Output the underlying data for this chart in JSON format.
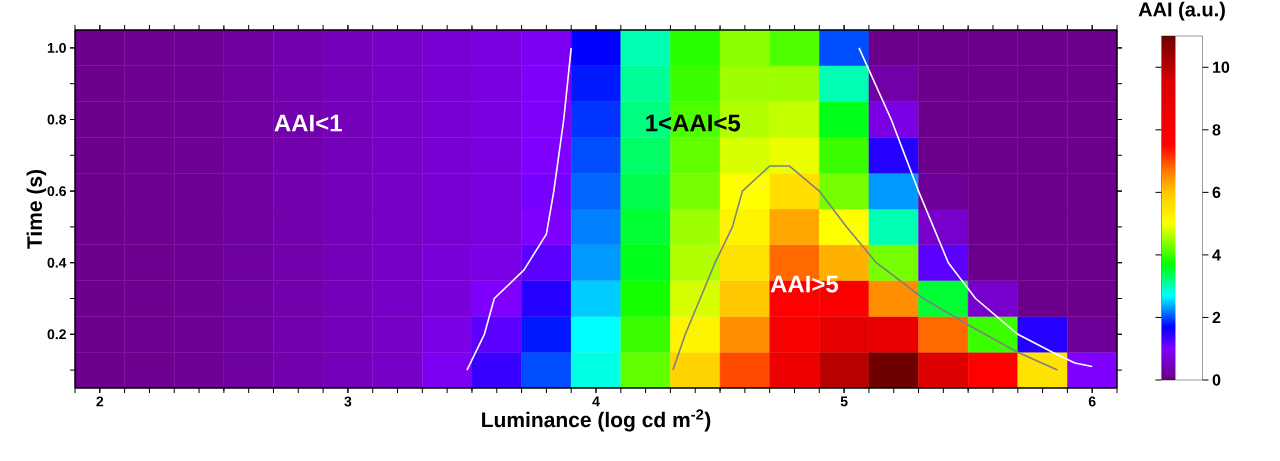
{
  "chart_data": [
    {
      "type": "heatmap",
      "clabel": "AAI (a.u.)",
      "categories": [
        null,
        null,
        null,
        null,
        null,
        null,
        null,
        null,
        null,
        null,
        null,
        null,
        null,
        null,
        null,
        null,
        null,
        null,
        null,
        null,
        null
      ],
      "y_categories": [
        null,
        null,
        null,
        null,
        null,
        null,
        null,
        null,
        null,
        null
      ],
      "clim": [
        0,
        11
      ],
      "cticks": [
        0,
        2,
        4,
        6,
        8,
        10
      ],
      "cells": [
        [
          0.1,
          0.12,
          0.18,
          0.25,
          0.35,
          0.45,
          0.55,
          0.65,
          0.75,
          0.9,
          1.7,
          3.0,
          3.9,
          4.4,
          4.1,
          2.0,
          0.1,
          0.1,
          0.1,
          0.1,
          0.1
        ],
        [
          0.1,
          0.12,
          0.18,
          0.25,
          0.35,
          0.45,
          0.55,
          0.65,
          0.75,
          0.95,
          1.8,
          3.1,
          4.0,
          4.5,
          4.5,
          3.0,
          0.3,
          0.1,
          0.1,
          0.1,
          0.1
        ],
        [
          0.1,
          0.12,
          0.18,
          0.25,
          0.35,
          0.45,
          0.55,
          0.65,
          0.75,
          0.95,
          1.9,
          3.2,
          4.1,
          4.6,
          4.7,
          3.6,
          0.8,
          0.1,
          0.1,
          0.1,
          0.1
        ],
        [
          0.1,
          0.12,
          0.18,
          0.25,
          0.35,
          0.45,
          0.55,
          0.65,
          0.75,
          1.0,
          2.0,
          3.3,
          4.2,
          4.8,
          4.9,
          4.0,
          1.5,
          0.1,
          0.1,
          0.1,
          0.1
        ],
        [
          0.1,
          0.12,
          0.18,
          0.25,
          0.35,
          0.45,
          0.55,
          0.65,
          0.75,
          1.05,
          2.1,
          3.4,
          4.3,
          5.0,
          5.6,
          4.3,
          2.3,
          0.2,
          0.1,
          0.1,
          0.1
        ],
        [
          0.1,
          0.12,
          0.18,
          0.25,
          0.35,
          0.45,
          0.55,
          0.65,
          0.75,
          1.0,
          2.2,
          3.5,
          4.5,
          5.2,
          6.3,
          5.0,
          3.0,
          0.6,
          0.1,
          0.1,
          0.1
        ],
        [
          0.1,
          0.12,
          0.18,
          0.25,
          0.35,
          0.45,
          0.55,
          0.7,
          0.8,
          1.2,
          2.3,
          3.6,
          4.6,
          5.5,
          6.8,
          6.2,
          4.3,
          1.2,
          0.1,
          0.1,
          0.1
        ],
        [
          0.1,
          0.12,
          0.18,
          0.25,
          0.35,
          0.45,
          0.55,
          0.7,
          1.0,
          1.5,
          2.5,
          3.8,
          4.8,
          6.0,
          7.5,
          7.8,
          6.5,
          3.5,
          0.6,
          0.1,
          0.1
        ],
        [
          0.1,
          0.12,
          0.18,
          0.25,
          0.35,
          0.45,
          0.55,
          0.8,
          1.2,
          1.8,
          2.7,
          4.0,
          5.2,
          6.5,
          8.0,
          9.0,
          8.8,
          6.8,
          4.0,
          1.5,
          0.2
        ],
        [
          0.1,
          0.12,
          0.18,
          0.25,
          0.35,
          0.45,
          0.55,
          0.9,
          1.4,
          2.0,
          2.8,
          4.2,
          5.8,
          7.0,
          8.5,
          10.0,
          11.0,
          9.5,
          7.5,
          5.5,
          1.0
        ]
      ],
      "annotations": [
        "AAI<1",
        "1<AAI<5",
        "AAI>5"
      ]
    },
    {
      "type": "line",
      "xlabel": "Luminance (log cd m$^{-2}$)",
      "ylabel": "Time (s)",
      "xlim": [
        1.9,
        6.1
      ],
      "ylim": [
        0.05,
        1.05
      ],
      "xticks": [
        2,
        3,
        4,
        5,
        6
      ],
      "yticks": [
        0.2,
        0.4,
        0.6,
        0.8,
        {
          "value": 1.0,
          "label": "1.0"
        }
      ],
      "series": [
        {
          "color": "#ffffff",
          "x": [
            3.48,
            3.55,
            3.59,
            3.71,
            3.8,
            3.83,
            3.87,
            3.9
          ],
          "values": [
            0.1,
            0.2,
            0.3,
            0.38,
            0.48,
            0.6,
            0.8,
            1.0
          ]
        },
        {
          "color": "#ffffff",
          "x": [
            5.06,
            5.19,
            5.3,
            5.42,
            5.53,
            5.7,
            5.84,
            5.93,
            6.0
          ],
          "values": [
            1.0,
            0.8,
            0.6,
            0.4,
            0.3,
            0.2,
            0.15,
            0.12,
            0.11
          ]
        },
        {
          "color": "#808080",
          "x": [
            4.31,
            4.36,
            4.42,
            4.48,
            4.55,
            4.59,
            4.7,
            4.78,
            4.9,
            5.01,
            5.13,
            5.32,
            5.49,
            5.7,
            5.86
          ],
          "values": [
            0.1,
            0.2,
            0.3,
            0.4,
            0.5,
            0.6,
            0.67,
            0.67,
            0.6,
            0.5,
            0.4,
            0.3,
            0.23,
            0.15,
            0.1
          ]
        }
      ]
    }
  ]
}
